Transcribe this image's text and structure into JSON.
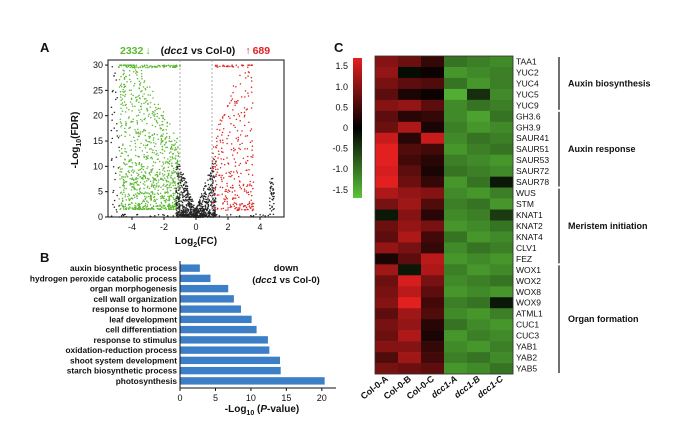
{
  "panels": {
    "a": "A",
    "b": "B",
    "c": "C"
  },
  "chart_data": [
    {
      "type": "scatter",
      "panel": "A",
      "title_parts": {
        "down_count": "2332",
        "down_arrow": "↓",
        "mid_gene": "dcc1",
        "mid_rest": " vs Col-0)",
        "mid_open": "(",
        "up_arrow": "↑",
        "up_count": "689"
      },
      "xlabel_parts": {
        "pre": "Log",
        "sub": "2",
        "post": "(FC)"
      },
      "ylabel_parts": {
        "pre": "-Log",
        "sub": "10",
        "post": "(FDR)"
      },
      "xlim": [
        -5.5,
        5.5
      ],
      "ylim": [
        0,
        31
      ],
      "xticks": [
        -4,
        -2,
        0,
        2,
        4
      ],
      "yticks": [
        0,
        5,
        10,
        15,
        20,
        25,
        30
      ],
      "thresholds": {
        "log2fc": [
          -1,
          1
        ]
      },
      "colors": {
        "down": "#5cb832",
        "up": "#e02020",
        "ns": "#222222"
      }
    },
    {
      "type": "bar",
      "panel": "B",
      "orientation": "horizontal",
      "annotation": {
        "line1": "down",
        "open": "(",
        "gene": "dcc1",
        "rest": " vs Col-0)"
      },
      "xlabel_parts": {
        "pre": "-Log",
        "sub": "10",
        "post_open": " (",
        "italic": "P",
        "post": "-value)"
      },
      "xlim": [
        0,
        22
      ],
      "xticks": [
        0,
        5,
        10,
        15,
        20
      ],
      "categories": [
        "auxin biosynthetic process",
        "hydrogen peroxide catabolic process",
        "organ morphogenesis",
        "cell wall organization",
        "response to hormone",
        "leaf development",
        "cell differentiation",
        "response to stimulus",
        "oxidation-reduction process",
        "shoot system development",
        "starch biosynthetic process",
        "photosynthesis"
      ],
      "values": [
        2.8,
        4.3,
        6.8,
        7.6,
        8.6,
        10.1,
        10.8,
        12.4,
        12.6,
        14.1,
        14.2,
        20.4
      ],
      "color": "#3d7fc6"
    },
    {
      "type": "heatmap",
      "panel": "C",
      "columns": [
        "Col-0-A",
        "Col-0-B",
        "Col-0-C",
        "dcc1-A",
        "dcc1-B",
        "dcc1-C"
      ],
      "italic_columns": [
        "dcc1-A",
        "dcc1-B",
        "dcc1-C"
      ],
      "rows": [
        "TAA1",
        "YUC2",
        "YUC4",
        "YUC5",
        "YUC9",
        "GH3.6",
        "GH3.9",
        "SAUR41",
        "SAUR51",
        "SAUR53",
        "SAUR72",
        "SAUR78",
        "WUS",
        "STM",
        "KNAT1",
        "KNAT2",
        "KNAT4",
        "CLV1",
        "FEZ",
        "WOX1",
        "WOX2",
        "WOX8",
        "WOX9",
        "ATML1",
        "CUC1",
        "CUC3",
        "YAB1",
        "YAB2",
        "YAB5"
      ],
      "values": [
        [
          1.0,
          0.8,
          0.4,
          -1.0,
          -1.1,
          -1.2
        ],
        [
          1.1,
          -0.1,
          0.1,
          -1.3,
          -1.2,
          -1.1
        ],
        [
          0.9,
          0.7,
          0.6,
          -1.0,
          -1.3,
          -1.1
        ],
        [
          0.7,
          0.2,
          0.1,
          -1.5,
          -0.4,
          -1.2
        ],
        [
          1.0,
          1.1,
          0.7,
          -1.2,
          -1.0,
          -1.1
        ],
        [
          0.7,
          0.3,
          0.4,
          -1.2,
          -1.4,
          -1.0
        ],
        [
          0.8,
          1.3,
          0.2,
          -1.1,
          -1.3,
          -1.2
        ],
        [
          1.5,
          0.3,
          1.5,
          -1.2,
          -1.0,
          -1.1
        ],
        [
          1.7,
          0.6,
          0.5,
          -1.3,
          -1.1,
          -1.0
        ],
        [
          1.8,
          0.5,
          0.3,
          -1.1,
          -1.2,
          -1.3
        ],
        [
          1.6,
          0.7,
          0.2,
          -1.0,
          -1.1,
          -1.2
        ],
        [
          1.7,
          0.8,
          0.4,
          -1.3,
          -1.0,
          -0.2
        ],
        [
          1.3,
          1.1,
          1.0,
          -1.2,
          -1.3,
          -1.1
        ],
        [
          0.9,
          1.2,
          0.6,
          -1.1,
          -1.0,
          -1.3
        ],
        [
          -0.2,
          1.0,
          0.3,
          -1.2,
          -1.1,
          -0.5
        ],
        [
          0.8,
          1.1,
          0.9,
          -1.3,
          -1.2,
          -1.0
        ],
        [
          0.7,
          1.3,
          0.5,
          -1.0,
          -1.3,
          -1.2
        ],
        [
          1.1,
          0.9,
          0.4,
          -1.2,
          -1.0,
          -1.1
        ],
        [
          0.2,
          0.7,
          1.4,
          -1.3,
          -1.2,
          -1.3
        ],
        [
          1.2,
          -0.2,
          1.3,
          -1.1,
          -1.3,
          -1.2
        ],
        [
          0.8,
          1.6,
          0.9,
          -1.2,
          -1.1,
          -1.0
        ],
        [
          0.9,
          1.4,
          0.7,
          -1.3,
          -1.2,
          -1.3
        ],
        [
          1.0,
          1.7,
          0.5,
          -1.1,
          -1.0,
          -0.2
        ],
        [
          0.7,
          1.2,
          0.6,
          -1.2,
          -1.3,
          -1.1
        ],
        [
          0.9,
          1.1,
          0.3,
          -1.0,
          -1.2,
          -1.3
        ],
        [
          0.8,
          1.3,
          0.2,
          -1.3,
          -1.1,
          -1.2
        ],
        [
          1.0,
          1.0,
          0.4,
          -1.2,
          -1.3,
          -1.1
        ],
        [
          0.6,
          1.2,
          0.5,
          -1.1,
          -1.0,
          -1.2
        ],
        [
          0.9,
          0.8,
          0.7,
          -1.3,
          -1.2,
          -1.0
        ]
      ],
      "colorbar": {
        "ticks": [
          1.5,
          1.0,
          0.5,
          0.0,
          -0.5,
          -1.0,
          -1.5
        ],
        "tick_labels": [
          "1.5",
          "1.0",
          "0.5",
          "0",
          "-0.5",
          "-1.0",
          "-1.5"
        ],
        "high": "#e32020",
        "mid": "#000000",
        "low": "#5cc43a",
        "range": [
          -1.7,
          1.7
        ]
      },
      "groups": [
        {
          "label": "Auxin biosynthesis",
          "from": "TAA1",
          "to": "YUC9"
        },
        {
          "label": "Auxin response",
          "from": "GH3.6",
          "to": "SAUR78"
        },
        {
          "label": "Meristem initiation",
          "from": "WUS",
          "to": "FEZ"
        },
        {
          "label": "Organ formation",
          "from": "WOX1",
          "to": "YAB5"
        }
      ]
    }
  ]
}
